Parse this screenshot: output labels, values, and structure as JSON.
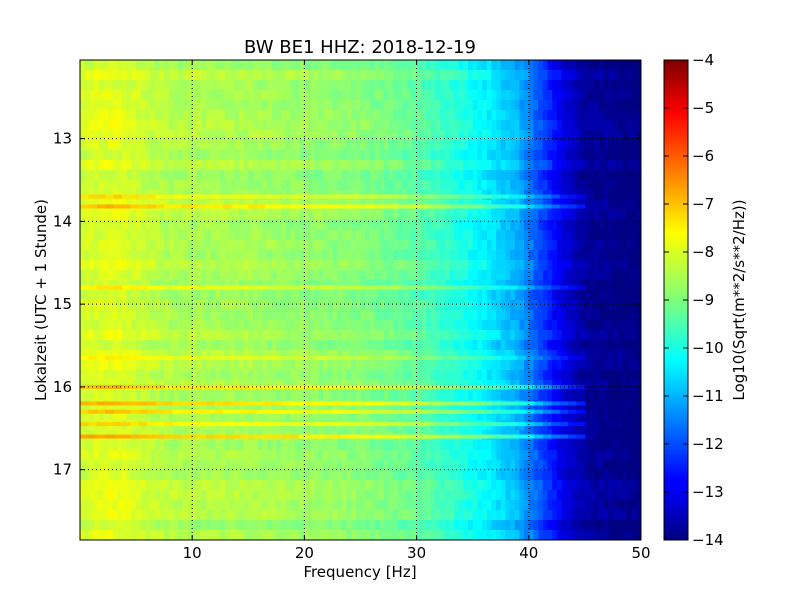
{
  "chart_data": {
    "type": "heatmap",
    "title": "BW BE1 HHZ: 2018-12-19",
    "xlabel": "Frequency [Hz]",
    "ylabel": "Lokalzeit (UTC + 1 Stunde)",
    "xlim": [
      0,
      50
    ],
    "ylim": [
      12.05,
      17.85
    ],
    "y_inverted": true,
    "xticks": [
      10,
      20,
      30,
      40,
      50
    ],
    "yticks": [
      13,
      14,
      15,
      16,
      17
    ],
    "grid": true,
    "colormap": "jet",
    "colorbar": {
      "label": "Log10(Sqrt(m**2/s**2/Hz))",
      "range": [
        -14,
        -4
      ],
      "ticks": [
        -4,
        -5,
        -6,
        -7,
        -8,
        -9,
        -10,
        -11,
        -12,
        -13,
        -14
      ]
    },
    "spectrum_profile": [
      {
        "freq": 0,
        "value": -8.2
      },
      {
        "freq": 3,
        "value": -8.0
      },
      {
        "freq": 8,
        "value": -8.5
      },
      {
        "freq": 15,
        "value": -8.6
      },
      {
        "freq": 25,
        "value": -8.9
      },
      {
        "freq": 30,
        "value": -9.3
      },
      {
        "freq": 33,
        "value": -9.8
      },
      {
        "freq": 36,
        "value": -10.3
      },
      {
        "freq": 39,
        "value": -11.0
      },
      {
        "freq": 41,
        "value": -12.0
      },
      {
        "freq": 43,
        "value": -13.0
      },
      {
        "freq": 45,
        "value": -13.7
      },
      {
        "freq": 50,
        "value": -14.0
      }
    ],
    "noise_bands": [
      {
        "time": 13.7,
        "value_offset": 0.7
      },
      {
        "time": 13.82,
        "value_offset": 1.0
      },
      {
        "time": 14.8,
        "value_offset": 0.5
      },
      {
        "time": 15.65,
        "value_offset": 0.5
      },
      {
        "time": 16.0,
        "value_offset": 1.0
      },
      {
        "time": 16.2,
        "value_offset": 1.1
      },
      {
        "time": 16.3,
        "value_offset": 0.9
      },
      {
        "time": 16.45,
        "value_offset": 0.8
      },
      {
        "time": 16.6,
        "value_offset": 1.2
      }
    ]
  }
}
